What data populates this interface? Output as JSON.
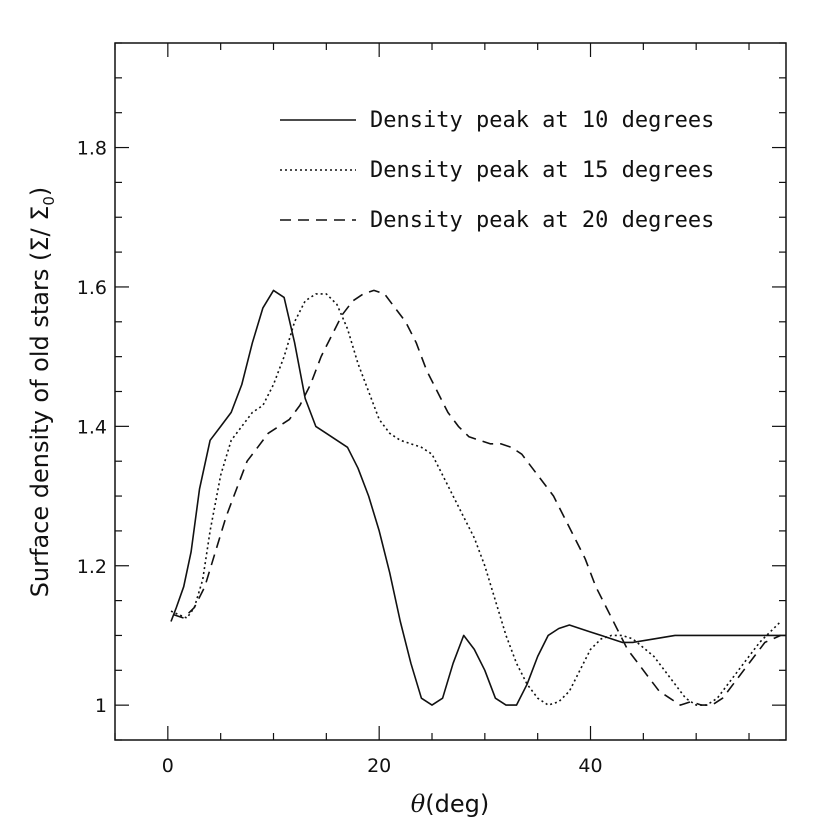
{
  "chart_data": {
    "type": "line",
    "title": "",
    "xlabel_symbol": "θ",
    "xlabel_unit": "(deg)",
    "ylabel": "Surface density of old stars (Σ/ Σ",
    "ylabel_sub": "0",
    "ylabel_close": ")",
    "xlim": [
      -5,
      58.5
    ],
    "ylim": [
      0.95,
      1.95
    ],
    "x_ticks": [
      0,
      20,
      40
    ],
    "x_tick_labels": [
      "0",
      "20",
      "40"
    ],
    "x_minor_step": 5,
    "y_ticks": [
      1.0,
      1.2,
      1.4,
      1.6,
      1.8
    ],
    "y_tick_labels": [
      "1",
      "1.2",
      "1.4",
      "1.6",
      "1.8"
    ],
    "y_minor_step": 0.05,
    "legend_position": "top-right",
    "series": [
      {
        "name": "Density peak at 10 degrees",
        "style": "solid",
        "x": [
          0.3,
          0.8,
          1.5,
          2.2,
          3.0,
          4.0,
          5.0,
          6.0,
          7.0,
          8.0,
          9.0,
          10.0,
          11.0,
          12.0,
          13.0,
          14.0,
          15.0,
          16.0,
          17.0,
          18.0,
          19.0,
          20.0,
          21.0,
          22.0,
          23.0,
          24.0,
          25.0,
          26.0,
          27.0,
          28.0,
          29.0,
          30.0,
          31.0,
          32.0,
          33.0,
          34.0,
          35.0,
          36.0,
          37.0,
          38.0,
          39.0,
          40.0,
          41.0,
          42.0,
          43.0,
          44.0,
          46.0,
          48.0,
          50.0,
          52.0,
          54.0,
          56.0,
          58.5
        ],
        "values": [
          1.12,
          1.14,
          1.17,
          1.22,
          1.31,
          1.38,
          1.4,
          1.42,
          1.46,
          1.52,
          1.57,
          1.595,
          1.585,
          1.52,
          1.44,
          1.4,
          1.39,
          1.38,
          1.37,
          1.34,
          1.3,
          1.25,
          1.19,
          1.12,
          1.06,
          1.01,
          1.0,
          1.01,
          1.06,
          1.1,
          1.08,
          1.05,
          1.01,
          1.0,
          1.0,
          1.03,
          1.07,
          1.1,
          1.11,
          1.115,
          1.11,
          1.105,
          1.1,
          1.095,
          1.09,
          1.09,
          1.095,
          1.1,
          1.1,
          1.1,
          1.1,
          1.1,
          1.1
        ]
      },
      {
        "name": "Density peak at 15 degrees",
        "style": "dotted",
        "x": [
          0.3,
          1.0,
          1.8,
          2.5,
          3.3,
          4.0,
          5.0,
          6.0,
          7.0,
          8.0,
          9.0,
          10.0,
          11.0,
          12.0,
          13.0,
          14.0,
          15.0,
          16.0,
          17.0,
          18.0,
          19.0,
          20.0,
          21.0,
          22.0,
          23.0,
          24.0,
          25.0,
          26.0,
          27.0,
          28.0,
          29.0,
          30.0,
          31.0,
          32.0,
          33.0,
          34.0,
          35.0,
          36.0,
          37.0,
          38.0,
          39.0,
          40.0,
          41.0,
          42.0,
          43.0,
          44.0,
          46.0,
          48.0,
          49.0,
          50.0,
          51.0,
          52.0,
          54.0,
          56.0,
          58.0
        ],
        "values": [
          1.135,
          1.13,
          1.125,
          1.14,
          1.18,
          1.25,
          1.33,
          1.38,
          1.4,
          1.42,
          1.43,
          1.46,
          1.5,
          1.55,
          1.58,
          1.59,
          1.59,
          1.575,
          1.54,
          1.49,
          1.45,
          1.41,
          1.39,
          1.38,
          1.375,
          1.37,
          1.36,
          1.33,
          1.3,
          1.27,
          1.24,
          1.2,
          1.15,
          1.1,
          1.06,
          1.03,
          1.01,
          1.0,
          1.005,
          1.02,
          1.05,
          1.08,
          1.095,
          1.1,
          1.1,
          1.095,
          1.07,
          1.03,
          1.01,
          1.0,
          1.0,
          1.01,
          1.05,
          1.09,
          1.12
        ]
      },
      {
        "name": "Density peak at 20 degrees",
        "style": "dashed",
        "x": [
          0.5,
          1.5,
          2.5,
          3.5,
          4.5,
          5.5,
          6.5,
          7.5,
          8.5,
          9.5,
          10.5,
          11.5,
          12.5,
          13.5,
          14.5,
          15.5,
          16.5,
          17.5,
          18.5,
          19.5,
          20.5,
          21.5,
          22.5,
          23.5,
          24.5,
          25.5,
          26.5,
          27.5,
          28.5,
          29.5,
          30.5,
          31.5,
          32.5,
          33.5,
          34.5,
          35.5,
          36.5,
          37.5,
          38.5,
          39.5,
          40.5,
          41.5,
          42.5,
          43.5,
          44.5,
          45.5,
          46.5,
          47.5,
          48.5,
          49.5,
          50.5,
          51.5,
          52.5,
          53.5,
          54.5,
          55.5,
          56.5,
          58.0
        ],
        "values": [
          1.13,
          1.125,
          1.14,
          1.17,
          1.22,
          1.27,
          1.31,
          1.35,
          1.37,
          1.39,
          1.4,
          1.41,
          1.43,
          1.46,
          1.5,
          1.53,
          1.56,
          1.58,
          1.59,
          1.595,
          1.59,
          1.57,
          1.55,
          1.52,
          1.48,
          1.45,
          1.42,
          1.4,
          1.385,
          1.38,
          1.375,
          1.375,
          1.37,
          1.36,
          1.34,
          1.32,
          1.3,
          1.27,
          1.24,
          1.21,
          1.17,
          1.14,
          1.11,
          1.08,
          1.06,
          1.04,
          1.02,
          1.01,
          1.0,
          1.005,
          1.0,
          1.0,
          1.01,
          1.03,
          1.05,
          1.07,
          1.09,
          1.1
        ]
      }
    ]
  }
}
